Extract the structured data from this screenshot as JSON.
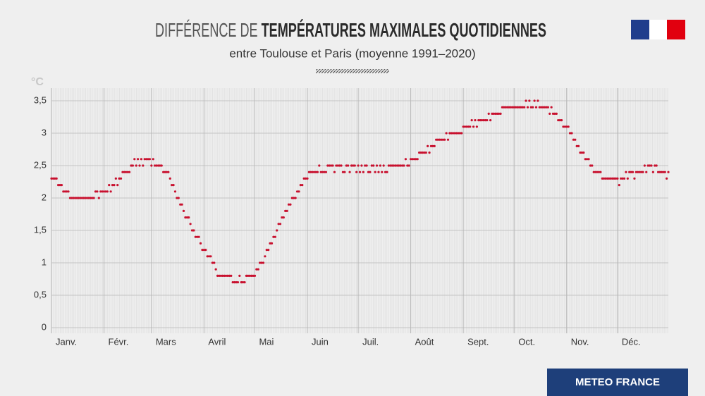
{
  "chart_data": {
    "type": "dot",
    "title_light": "DIFFÉRENCE DE ",
    "title_bold": "TEMPÉRATURES MAXIMALES QUOTIDIENNES",
    "subtitle": "entre Toulouse et Paris (moyenne 1991–2020)",
    "y_unit": "°C",
    "color": "#c8102e",
    "ylim": [
      0,
      3.5
    ],
    "yticks": [
      0,
      {
        "value": 0.5,
        "label": "0,5"
      },
      1,
      {
        "value": 1.5,
        "label": "1,5"
      },
      2,
      {
        "value": 2.5,
        "label": "2,5"
      },
      3,
      {
        "value": 3.5,
        "label": "3,5"
      }
    ],
    "xlim": [
      1,
      365
    ],
    "xticks": [
      {
        "value": 1,
        "label": "Janv."
      },
      {
        "value": 32,
        "label": "Févr."
      },
      {
        "value": 60,
        "label": "Mars"
      },
      {
        "value": 91,
        "label": "Avril"
      },
      {
        "value": 121,
        "label": "Mai"
      },
      {
        "value": 152,
        "label": "Juin"
      },
      {
        "value": 182,
        "label": "Juil."
      },
      {
        "value": 213,
        "label": "Août"
      },
      {
        "value": 244,
        "label": "Sept."
      },
      {
        "value": 274,
        "label": "Oct."
      },
      {
        "value": 305,
        "label": "Nov."
      },
      {
        "value": 335,
        "label": "Déc."
      }
    ],
    "values": [
      2.3,
      2.3,
      2.3,
      2.3,
      2.2,
      2.2,
      2.2,
      2.1,
      2.1,
      2.1,
      2.1,
      2.0,
      2.0,
      2.0,
      2.0,
      2.0,
      2.0,
      2.0,
      2.0,
      2.0,
      2.0,
      2.0,
      2.0,
      2.0,
      2.0,
      2.0,
      2.1,
      2.1,
      2.0,
      2.1,
      2.1,
      2.1,
      2.1,
      2.1,
      2.2,
      2.1,
      2.2,
      2.2,
      2.3,
      2.2,
      2.3,
      2.3,
      2.4,
      2.4,
      2.4,
      2.4,
      2.4,
      2.5,
      2.5,
      2.6,
      2.5,
      2.6,
      2.5,
      2.6,
      2.5,
      2.6,
      2.6,
      2.6,
      2.6,
      2.5,
      2.6,
      2.5,
      2.5,
      2.5,
      2.5,
      2.5,
      2.4,
      2.4,
      2.4,
      2.4,
      2.3,
      2.2,
      2.2,
      2.1,
      2.0,
      2.0,
      1.9,
      1.9,
      1.8,
      1.7,
      1.7,
      1.7,
      1.6,
      1.5,
      1.5,
      1.4,
      1.4,
      1.4,
      1.3,
      1.2,
      1.2,
      1.2,
      1.1,
      1.1,
      1.1,
      1.0,
      1.0,
      0.9,
      0.8,
      0.8,
      0.8,
      0.8,
      0.8,
      0.8,
      0.8,
      0.8,
      0.8,
      0.7,
      0.7,
      0.7,
      0.7,
      0.8,
      0.7,
      0.7,
      0.7,
      0.8,
      0.8,
      0.8,
      0.8,
      0.8,
      0.8,
      0.9,
      0.9,
      1.0,
      1.0,
      1.0,
      1.1,
      1.2,
      1.2,
      1.3,
      1.3,
      1.4,
      1.4,
      1.5,
      1.6,
      1.6,
      1.7,
      1.7,
      1.8,
      1.8,
      1.9,
      1.9,
      2.0,
      2.0,
      2.0,
      2.1,
      2.1,
      2.2,
      2.2,
      2.3,
      2.3,
      2.3,
      2.4,
      2.4,
      2.4,
      2.4,
      2.4,
      2.4,
      2.5,
      2.4,
      2.4,
      2.4,
      2.4,
      2.5,
      2.5,
      2.5,
      2.5,
      2.4,
      2.5,
      2.5,
      2.5,
      2.5,
      2.4,
      2.4,
      2.5,
      2.5,
      2.4,
      2.5,
      2.5,
      2.5,
      2.4,
      2.5,
      2.4,
      2.5,
      2.4,
      2.5,
      2.5,
      2.4,
      2.4,
      2.5,
      2.5,
      2.4,
      2.5,
      2.4,
      2.5,
      2.4,
      2.5,
      2.4,
      2.4,
      2.5,
      2.5,
      2.5,
      2.5,
      2.5,
      2.5,
      2.5,
      2.5,
      2.5,
      2.5,
      2.6,
      2.5,
      2.5,
      2.6,
      2.6,
      2.6,
      2.6,
      2.6,
      2.7,
      2.7,
      2.7,
      2.7,
      2.7,
      2.8,
      2.7,
      2.8,
      2.8,
      2.8,
      2.9,
      2.9,
      2.9,
      2.9,
      2.9,
      2.9,
      3.0,
      2.9,
      3.0,
      3.0,
      3.0,
      3.0,
      3.0,
      3.0,
      3.0,
      3.0,
      3.1,
      3.1,
      3.1,
      3.1,
      3.1,
      3.2,
      3.1,
      3.2,
      3.1,
      3.2,
      3.2,
      3.2,
      3.2,
      3.2,
      3.2,
      3.3,
      3.2,
      3.3,
      3.3,
      3.3,
      3.3,
      3.3,
      3.3,
      3.4,
      3.4,
      3.4,
      3.4,
      3.4,
      3.4,
      3.4,
      3.4,
      3.4,
      3.4,
      3.4,
      3.4,
      3.4,
      3.4,
      3.5,
      3.4,
      3.5,
      3.4,
      3.4,
      3.5,
      3.4,
      3.5,
      3.4,
      3.4,
      3.4,
      3.4,
      3.4,
      3.4,
      3.3,
      3.4,
      3.3,
      3.3,
      3.3,
      3.2,
      3.2,
      3.2,
      3.1,
      3.1,
      3.1,
      3.1,
      3.0,
      3.0,
      2.9,
      2.9,
      2.8,
      2.8,
      2.7,
      2.7,
      2.7,
      2.6,
      2.6,
      2.6,
      2.5,
      2.5,
      2.4,
      2.4,
      2.4,
      2.4,
      2.4,
      2.3,
      2.3,
      2.3,
      2.3,
      2.3,
      2.3,
      2.3,
      2.3,
      2.3,
      2.3,
      2.2,
      2.3,
      2.3,
      2.3,
      2.4,
      2.3,
      2.4,
      2.4,
      2.4,
      2.3,
      2.4,
      2.4,
      2.4,
      2.4,
      2.4,
      2.5,
      2.4,
      2.5,
      2.5,
      2.5,
      2.4,
      2.5,
      2.5,
      2.4,
      2.4,
      2.4,
      2.4,
      2.4,
      2.3,
      2.4
    ]
  },
  "footer": {
    "brand": "METEO FRANCE"
  }
}
